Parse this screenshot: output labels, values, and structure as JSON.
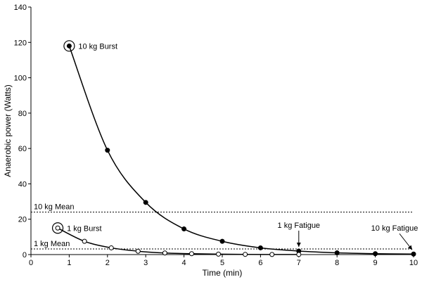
{
  "chart_data": {
    "type": "line",
    "xlabel": "Time  (min)",
    "ylabel": "Anaerobic power  (Watts)",
    "xlim": [
      0,
      10
    ],
    "ylim": [
      0,
      140
    ],
    "xticks": [
      0,
      1,
      2,
      3,
      4,
      5,
      6,
      7,
      8,
      9,
      10
    ],
    "yticks": [
      0,
      20,
      40,
      60,
      80,
      100,
      120,
      140
    ],
    "grid": false,
    "series": [
      {
        "marker": "filled-circle",
        "x": [
          1,
          2,
          3,
          4,
          5,
          6,
          7,
          8,
          9,
          10
        ],
        "y": [
          118,
          59,
          29.5,
          14.5,
          7.5,
          3.8,
          2,
          1,
          0.5,
          0.3
        ]
      },
      {
        "marker": "open-circle",
        "x": [
          0.7,
          1.4,
          2.1,
          2.8,
          3.5,
          4.2,
          4.9,
          5.6,
          6.3,
          7
        ],
        "y": [
          15,
          7.5,
          3.8,
          1.9,
          0.9,
          0.5,
          0.25,
          0.12,
          0.06,
          0.03
        ]
      }
    ],
    "reference_lines": [
      {
        "label": "10 kg Mean",
        "y": 24
      },
      {
        "label": "1 kg Mean",
        "y": 3.2
      }
    ],
    "annotations": [
      {
        "text": "10 kg Burst",
        "x": 1,
        "y": 118
      },
      {
        "text": "1 kg Burst",
        "x": 0.7,
        "y": 15
      },
      {
        "text": "1 kg Fatigue",
        "x": 7,
        "y": 2
      },
      {
        "text": "10 kg Fatigue",
        "x": 10,
        "y": 0.3
      }
    ]
  }
}
